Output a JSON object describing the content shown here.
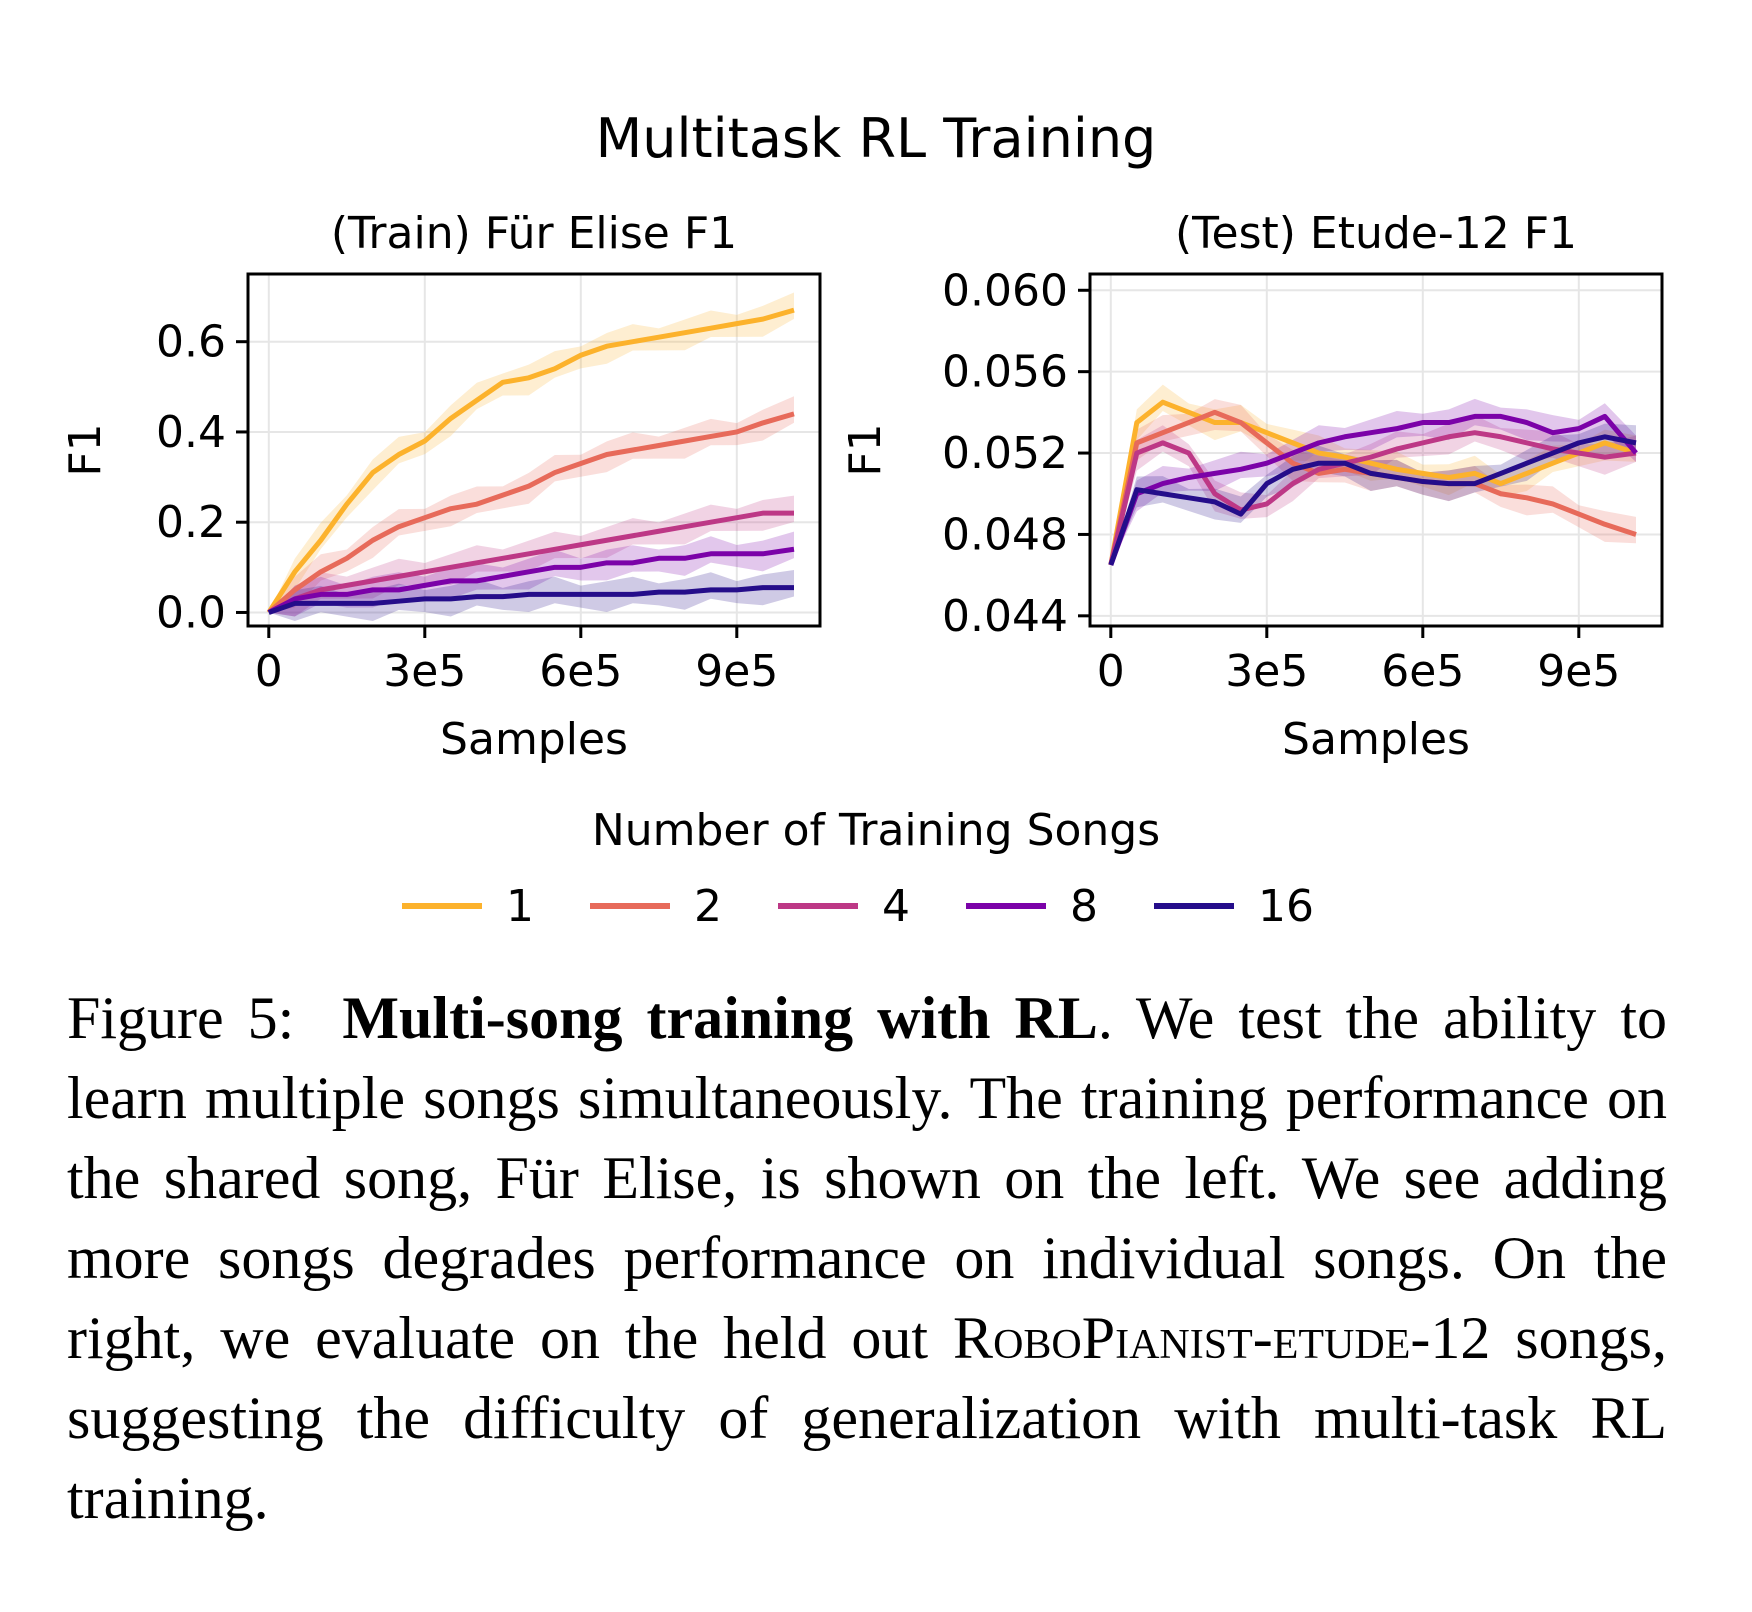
{
  "figure": {
    "suptitle": "Multitask RL Training",
    "legend_title": "Number of Training Songs",
    "legend_placement": "bottom-center",
    "series_colors": [
      "#fcb22c",
      "#e76a5a",
      "#bd3886",
      "#7b02a8",
      "#250d8a"
    ]
  },
  "chart_data": [
    {
      "type": "line",
      "title": "(Train) Für Elise F1",
      "xlabel": "Samples",
      "ylabel": "F1",
      "xlim": [
        -40000,
        1060000
      ],
      "ylim": [
        -0.03,
        0.75
      ],
      "xticks": [
        0,
        300000,
        600000,
        900000
      ],
      "xtick_labels": [
        "0",
        "3e5",
        "6e5",
        "9e5"
      ],
      "yticks": [
        0.0,
        0.2,
        0.4,
        0.6
      ],
      "ytick_labels": [
        "0.0",
        "0.2",
        "0.4",
        "0.6"
      ],
      "grid": true,
      "x": [
        0,
        50000,
        100000,
        150000,
        200000,
        250000,
        300000,
        350000,
        400000,
        450000,
        500000,
        550000,
        600000,
        650000,
        700000,
        750000,
        800000,
        850000,
        900000,
        950000,
        1010000
      ],
      "series": [
        {
          "name": "1",
          "values": [
            0.0,
            0.09,
            0.16,
            0.24,
            0.31,
            0.35,
            0.38,
            0.43,
            0.47,
            0.51,
            0.52,
            0.54,
            0.57,
            0.59,
            0.6,
            0.61,
            0.62,
            0.63,
            0.64,
            0.65,
            0.67
          ]
        },
        {
          "name": "2",
          "values": [
            0.0,
            0.05,
            0.09,
            0.12,
            0.16,
            0.19,
            0.21,
            0.23,
            0.24,
            0.26,
            0.28,
            0.31,
            0.33,
            0.35,
            0.36,
            0.37,
            0.38,
            0.39,
            0.4,
            0.42,
            0.44
          ]
        },
        {
          "name": "4",
          "values": [
            0.0,
            0.03,
            0.05,
            0.06,
            0.07,
            0.08,
            0.09,
            0.1,
            0.11,
            0.12,
            0.13,
            0.14,
            0.15,
            0.16,
            0.17,
            0.18,
            0.19,
            0.2,
            0.21,
            0.22,
            0.22
          ]
        },
        {
          "name": "8",
          "values": [
            0.0,
            0.03,
            0.04,
            0.04,
            0.05,
            0.05,
            0.06,
            0.07,
            0.07,
            0.08,
            0.09,
            0.1,
            0.1,
            0.11,
            0.11,
            0.12,
            0.12,
            0.13,
            0.13,
            0.13,
            0.14
          ]
        },
        {
          "name": "16",
          "values": [
            0.0,
            0.02,
            0.02,
            0.02,
            0.02,
            0.025,
            0.03,
            0.03,
            0.035,
            0.035,
            0.04,
            0.04,
            0.04,
            0.04,
            0.04,
            0.045,
            0.045,
            0.05,
            0.05,
            0.055,
            0.055
          ]
        }
      ]
    },
    {
      "type": "line",
      "title": "(Test) Etude-12 F1",
      "xlabel": "Samples",
      "ylabel": "F1",
      "xlim": [
        -40000,
        1060000
      ],
      "ylim": [
        0.0435,
        0.0608
      ],
      "xticks": [
        0,
        300000,
        600000,
        900000
      ],
      "xtick_labels": [
        "0",
        "3e5",
        "6e5",
        "9e5"
      ],
      "yticks": [
        0.044,
        0.048,
        0.052,
        0.056,
        0.06
      ],
      "ytick_labels": [
        "0.044",
        "0.048",
        "0.052",
        "0.056",
        "0.060"
      ],
      "grid": true,
      "x": [
        0,
        50000,
        100000,
        150000,
        200000,
        250000,
        300000,
        350000,
        400000,
        450000,
        500000,
        550000,
        600000,
        650000,
        700000,
        750000,
        800000,
        850000,
        900000,
        950000,
        1010000
      ],
      "series": [
        {
          "name": "1",
          "values": [
            0.0465,
            0.0535,
            0.0545,
            0.054,
            0.0535,
            0.0535,
            0.053,
            0.0525,
            0.052,
            0.0518,
            0.0515,
            0.0512,
            0.051,
            0.0508,
            0.051,
            0.0505,
            0.051,
            0.0515,
            0.052,
            0.0525,
            0.052
          ]
        },
        {
          "name": "2",
          "values": [
            0.0465,
            0.0525,
            0.053,
            0.0535,
            0.054,
            0.0535,
            0.0525,
            0.0515,
            0.051,
            0.0512,
            0.051,
            0.0508,
            0.0506,
            0.0505,
            0.0505,
            0.05,
            0.0498,
            0.0495,
            0.049,
            0.0485,
            0.048
          ]
        },
        {
          "name": "4",
          "values": [
            0.0465,
            0.052,
            0.0525,
            0.052,
            0.05,
            0.0492,
            0.0495,
            0.0505,
            0.0512,
            0.0515,
            0.0518,
            0.0522,
            0.0525,
            0.0528,
            0.053,
            0.0528,
            0.0525,
            0.0522,
            0.052,
            0.0518,
            0.052
          ]
        },
        {
          "name": "8",
          "values": [
            0.0465,
            0.05,
            0.0505,
            0.0508,
            0.051,
            0.0512,
            0.0515,
            0.052,
            0.0525,
            0.0528,
            0.053,
            0.0532,
            0.0535,
            0.0535,
            0.0538,
            0.0538,
            0.0535,
            0.053,
            0.0532,
            0.0538,
            0.052
          ]
        },
        {
          "name": "16",
          "values": [
            0.0465,
            0.0502,
            0.05,
            0.0498,
            0.0496,
            0.049,
            0.0505,
            0.0512,
            0.0515,
            0.0515,
            0.051,
            0.0508,
            0.0506,
            0.0505,
            0.0505,
            0.051,
            0.0515,
            0.052,
            0.0525,
            0.0528,
            0.0525
          ]
        }
      ]
    }
  ],
  "caption": {
    "label": "Figure 5:",
    "bold": "Multi-song training with RL",
    "part1": ". We test the ability to learn multiple songs simultaneously.  The training performance on the shared song, Für Elise, is shown on the left. We see adding more songs degrades performance on individual songs. On the right, we evaluate on the held out ",
    "smallcaps": "RoboPianist-etude",
    "part2": "-12 songs, suggesting the difficulty of generalization with multi-task RL training."
  }
}
